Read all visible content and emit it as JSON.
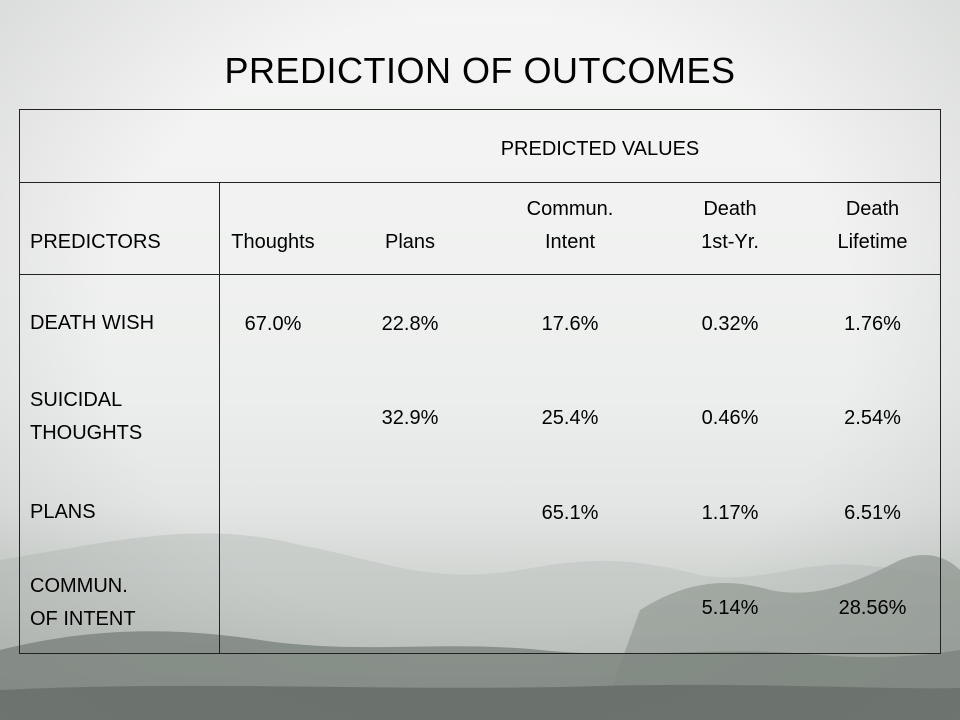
{
  "title": "PREDICTION OF OUTCOMES",
  "table": {
    "super_header": "PREDICTED VALUES",
    "col_headers": {
      "predictors": "PREDICTORS",
      "thoughts": "Thoughts",
      "plans": "Plans",
      "commun_l1": "Commun.",
      "commun_l2": "Intent",
      "death1_l1": "Death",
      "death1_l2": "1st-Yr.",
      "deathlife_l1": "Death",
      "deathlife_l2": "Lifetime"
    },
    "rows": [
      {
        "label_l1": "DEATH WISH",
        "label_l2": "",
        "thoughts": "67.0%",
        "plans": "22.8%",
        "commun": "17.6%",
        "death1": "0.32%",
        "deathlife": "1.76%"
      },
      {
        "label_l1": "SUICIDAL",
        "label_l2": "THOUGHTS",
        "thoughts": "",
        "plans": "32.9%",
        "commun": "25.4%",
        "death1": "0.46%",
        "deathlife": "2.54%"
      },
      {
        "label_l1": "PLANS",
        "label_l2": "",
        "thoughts": "",
        "plans": "",
        "commun": "65.1%",
        "death1": "1.17%",
        "deathlife": "6.51%"
      },
      {
        "label_l1": "COMMUN.",
        "label_l2": "OF INTENT",
        "thoughts": "",
        "plans": "",
        "commun": "",
        "death1": "5.14%",
        "deathlife": "28.56%"
      }
    ]
  }
}
